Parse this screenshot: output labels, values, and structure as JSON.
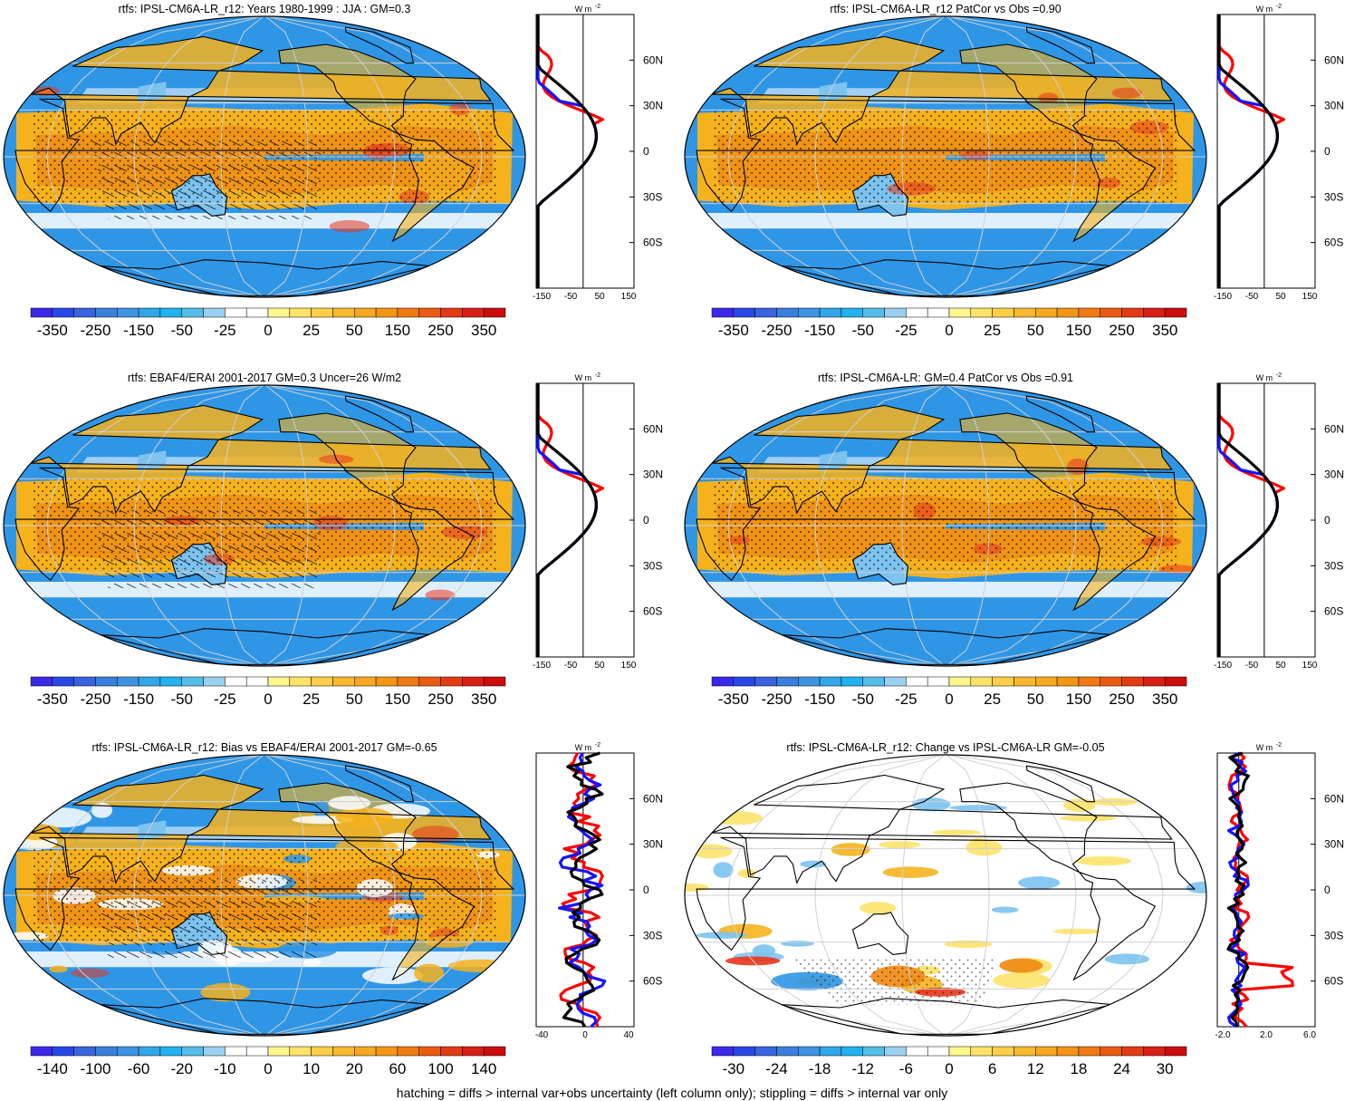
{
  "colors": {
    "ocean_blue": "#2f96e6",
    "blue_light": "#7cc3f0",
    "orange": "#f5b21d",
    "orange_dark": "#ee8a13",
    "red": "#e8361b",
    "line_red": "#ff0000",
    "line_blue": "#1414ff",
    "line_black": "#000000",
    "palette": [
      "#3b28e8",
      "#2a48e6",
      "#3a64dd",
      "#3a7fdc",
      "#3e94e2",
      "#31a6e8",
      "#22b2ef",
      "#55bde9",
      "#9ad0ef",
      "#ffffff",
      "#ffffff",
      "#fff68e",
      "#fde36a",
      "#fccf48",
      "#f8b830",
      "#f5a820",
      "#f39515",
      "#ef7a12",
      "#ea5a12",
      "#e23c14",
      "#d81f16",
      "#cc0d0d"
    ]
  },
  "panels": [
    {
      "title": "rtfs: IPSL-CM6A-LR_r12: Years 1980-1999 : JJA : GM=0.3",
      "map_style": "mean",
      "colorbar_labels": [
        "-350",
        "-250",
        "-150",
        "-50",
        "-25",
        "0",
        "25",
        "50",
        "150",
        "250",
        "350"
      ],
      "profile_ticks": [
        "-150",
        "-50",
        "50",
        "150"
      ],
      "profile_style": "mean",
      "unit": "W m",
      "unit_exp": "-2",
      "lat_labels": [
        "60N",
        "30N",
        "0",
        "30S",
        "60S"
      ]
    },
    {
      "title": "rtfs: IPSL-CM6A-LR_r12 PatCor vs Obs =0.90",
      "map_style": "mean2",
      "colorbar_labels": [
        "-350",
        "-250",
        "-150",
        "-50",
        "-25",
        "0",
        "25",
        "50",
        "150",
        "250",
        "350"
      ],
      "profile_ticks": [
        "-150",
        "-50",
        "50",
        "150"
      ],
      "profile_style": "mean",
      "unit": "W m",
      "unit_exp": "-2",
      "lat_labels": [
        "60N",
        "30N",
        "0",
        "30S",
        "60S"
      ]
    },
    {
      "title": "rtfs: EBAF4/ERAI 2001-2017 GM=0.3 Uncer=26 W/m2",
      "map_style": "mean",
      "colorbar_labels": [
        "-350",
        "-250",
        "-150",
        "-50",
        "-25",
        "0",
        "25",
        "50",
        "150",
        "250",
        "350"
      ],
      "profile_ticks": [
        "-150",
        "-50",
        "50",
        "150"
      ],
      "profile_style": "mean",
      "unit": "W m",
      "unit_exp": "-2",
      "lat_labels": [
        "60N",
        "30N",
        "0",
        "30S",
        "60S"
      ]
    },
    {
      "title": "rtfs: IPSL-CM6A-LR: GM=0.4 PatCor vs Obs =0.91",
      "map_style": "mean2",
      "colorbar_labels": [
        "-350",
        "-250",
        "-150",
        "-50",
        "-25",
        "0",
        "25",
        "50",
        "150",
        "250",
        "350"
      ],
      "profile_ticks": [
        "-150",
        "-50",
        "50",
        "150"
      ],
      "profile_style": "mean",
      "unit": "W m",
      "unit_exp": "-2",
      "lat_labels": [
        "60N",
        "30N",
        "0",
        "30S",
        "60S"
      ]
    },
    {
      "title": "rtfs: IPSL-CM6A-LR_r12: Bias vs EBAF4/ERAI 2001-2017 GM=-0.65",
      "map_style": "bias",
      "colorbar_labels": [
        "-140",
        "-100",
        "-60",
        "-20",
        "-10",
        "0",
        "10",
        "20",
        "60",
        "100",
        "140"
      ],
      "profile_ticks": [
        "-40",
        "0",
        "40"
      ],
      "profile_style": "bias",
      "unit": "W m",
      "unit_exp": "-2",
      "lat_labels": [
        "60N",
        "30N",
        "0",
        "30S",
        "60S"
      ]
    },
    {
      "title": "rtfs: IPSL-CM6A-LR_r12: Change vs IPSL-CM6A-LR GM=-0.05",
      "map_style": "change",
      "colorbar_labels": [
        "-30",
        "-24",
        "-18",
        "-12",
        "-6",
        "0",
        "6",
        "12",
        "18",
        "24",
        "30"
      ],
      "profile_ticks": [
        "-2.0",
        "2.0",
        "6.0"
      ],
      "profile_style": "change",
      "unit": "W m",
      "unit_exp": "-2",
      "lat_labels": [
        "60N",
        "30N",
        "0",
        "30S",
        "60S"
      ]
    }
  ],
  "footer": "hatching = diffs > internal var+obs uncertainty (left column only); stippling = diffs > internal var only"
}
